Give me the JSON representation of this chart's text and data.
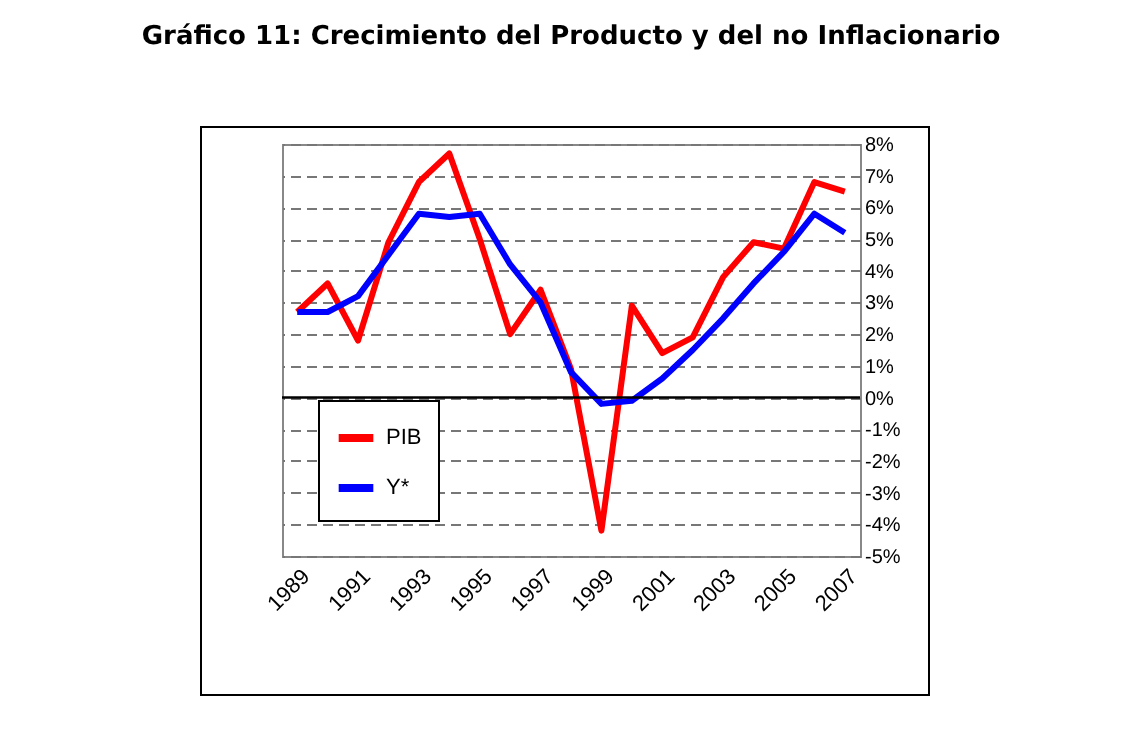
{
  "chart_data": {
    "type": "line",
    "title": "Gráfico 11: Crecimiento del Producto y del no Inflacionario",
    "categories": [
      "1989",
      null,
      "1991",
      null,
      "1993",
      null,
      "1995",
      null,
      "1997",
      null,
      "1999",
      null,
      "2001",
      null,
      "2003",
      null,
      "2005",
      null,
      "2007"
    ],
    "series": [
      {
        "name": "PIB",
        "color": "#ff0000",
        "values": [
          2.7,
          3.6,
          1.8,
          4.9,
          6.8,
          7.7,
          5.0,
          2.0,
          3.4,
          0.9,
          -4.2,
          2.9,
          1.4,
          1.9,
          3.8,
          4.9,
          4.7,
          6.8,
          6.5
        ]
      },
      {
        "name": "Y*",
        "color": "#0000ff",
        "values": [
          2.7,
          2.7,
          3.2,
          4.5,
          5.8,
          5.7,
          5.8,
          4.2,
          3.0,
          0.8,
          -0.2,
          -0.1,
          0.6,
          1.5,
          2.5,
          3.6,
          4.6,
          5.8,
          5.2
        ]
      }
    ],
    "ylim": [
      -5,
      8
    ],
    "yticks": [
      {
        "value": 8,
        "label": "8%"
      },
      {
        "value": 7,
        "label": "7%"
      },
      {
        "value": 6,
        "label": "6%"
      },
      {
        "value": 5,
        "label": "5%"
      },
      {
        "value": 4,
        "label": "4%"
      },
      {
        "value": 3,
        "label": "3%"
      },
      {
        "value": 2,
        "label": "2%"
      },
      {
        "value": 1,
        "label": "1%"
      },
      {
        "value": 0,
        "label": "0%"
      },
      {
        "value": -1,
        "label": "-1%"
      },
      {
        "value": -2,
        "label": "-2%"
      },
      {
        "value": -3,
        "label": "-3%"
      },
      {
        "value": -4,
        "label": "-4%"
      },
      {
        "value": -5,
        "label": "-5%"
      }
    ],
    "ref_lines": [
      {
        "axis": "y",
        "value": 0,
        "color": "#000000"
      }
    ],
    "grid": "y",
    "legend": "bottom left",
    "marker": "none",
    "line_style": "solid"
  }
}
